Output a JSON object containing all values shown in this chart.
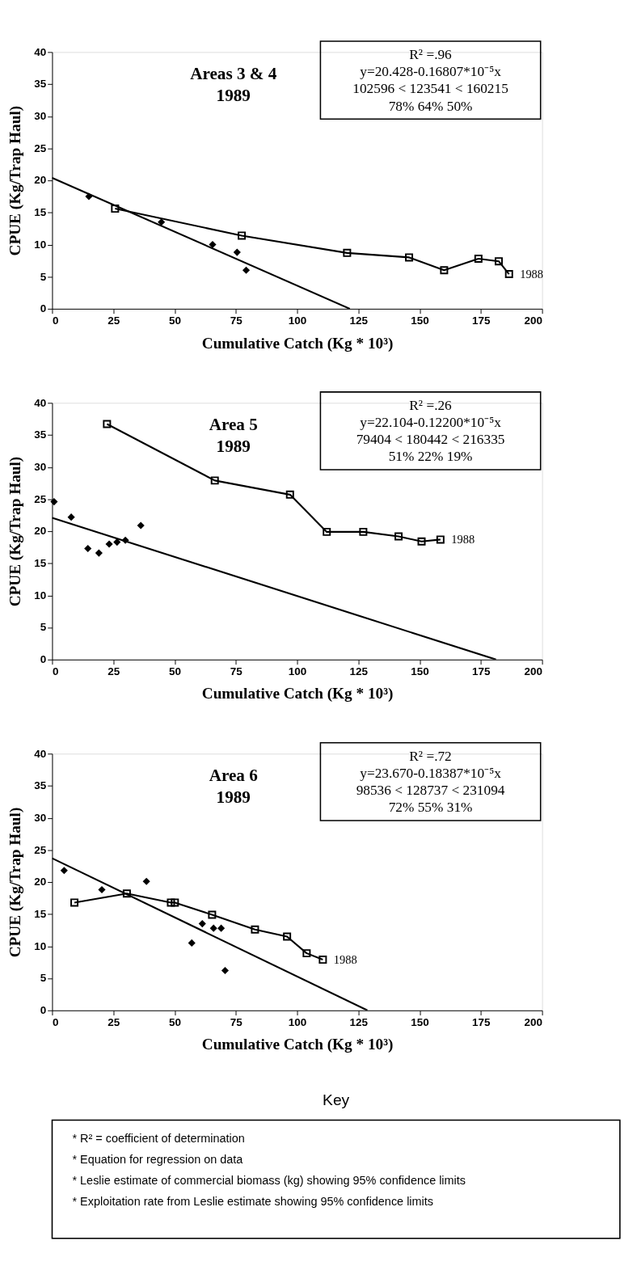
{
  "chart_data": [
    {
      "type": "scatter",
      "title": "Areas 3 & 4",
      "subtitle": "1989",
      "xlabel": "Cumulative Catch  (Kg * 10³)",
      "ylabel": "CPUE (Kg/Trap Haul)",
      "xlim": [
        0,
        200
      ],
      "xticks": [
        0,
        25,
        50,
        75,
        100,
        125,
        150,
        175,
        200
      ],
      "ylim": [
        0,
        40
      ],
      "yticks": [
        0,
        5,
        10,
        15,
        20,
        25,
        30,
        35,
        40
      ],
      "annotations": [
        "R² =.96",
        "y=20.428-0.16807*10⁻⁵x",
        "102596 < 123541 < 160215",
        "78%          64%          50%"
      ],
      "series": [
        {
          "type": "scatter",
          "marker": "diamond",
          "color": "#000000",
          "x": [
            15,
            44.6,
            65.5,
            75.5,
            79.2
          ],
          "values": [
            17.5,
            13.5,
            10,
            8.8,
            6
          ]
        },
        {
          "type": "line",
          "marker": "none",
          "color": "#000000",
          "x": [
            0,
            121.5
          ],
          "values": [
            20.4,
            0
          ]
        },
        {
          "type": "line",
          "marker": "square",
          "name": "1988",
          "color": "#000000",
          "x": [
            25.7,
            77.4,
            120.4,
            145.7,
            160,
            174,
            182.3,
            186.5
          ],
          "values": [
            15.6,
            11.4,
            8.7,
            8.0,
            6.0,
            7.8,
            7.4,
            5.4
          ]
        }
      ]
    },
    {
      "type": "scatter",
      "title": "Area 5",
      "subtitle": "1989",
      "xlabel": "Cumulative Catch  (Kg * 10³)",
      "ylabel": "CPUE (Kg/Trap Haul)",
      "xlim": [
        0,
        200
      ],
      "xticks": [
        0,
        25,
        50,
        75,
        100,
        125,
        150,
        175,
        200
      ],
      "ylim": [
        0,
        40
      ],
      "yticks": [
        0,
        5,
        10,
        15,
        20,
        25,
        30,
        35,
        40
      ],
      "annotations": [
        "R² =.26",
        "y=22.104-0.12200*10⁻⁵x",
        "79404 < 180442 < 216335",
        "51%          22%          19%"
      ],
      "series": [
        {
          "type": "scatter",
          "marker": "diamond",
          "color": "#000000",
          "x": [
            0.8,
            7.8,
            14.6,
            19.1,
            23.3,
            26.5,
            29.9,
            36.2
          ],
          "values": [
            24.6,
            22.2,
            17.3,
            16.6,
            18.0,
            18.3,
            18.6,
            20.9
          ]
        },
        {
          "type": "line",
          "marker": "none",
          "color": "#000000",
          "x": [
            0,
            181.2
          ],
          "values": [
            22.1,
            0
          ]
        },
        {
          "type": "line",
          "marker": "square",
          "name": "1988",
          "color": "#000000",
          "x": [
            22.4,
            66.4,
            97.1,
            112.1,
            127,
            141.4,
            150.8,
            158.5
          ],
          "values": [
            36.7,
            27.9,
            25.7,
            19.9,
            19.9,
            19.2,
            18.4,
            18.7
          ]
        }
      ]
    },
    {
      "type": "scatter",
      "title": "Area 6",
      "subtitle": "1989",
      "xlabel": "Cumulative Catch  (Kg * 10³)",
      "ylabel": "CPUE (Kg/Trap Haul)",
      "xlim": [
        0,
        200
      ],
      "xticks": [
        0,
        25,
        50,
        75,
        100,
        125,
        150,
        175,
        200
      ],
      "ylim": [
        0,
        40
      ],
      "yticks": [
        0,
        5,
        10,
        15,
        20,
        25,
        30,
        35,
        40
      ],
      "annotations": [
        "R² =.72",
        "y=23.670-0.18387*10⁻⁵x",
        "98536 < 128737 < 231094",
        "72%          55%          31%"
      ],
      "series": [
        {
          "type": "scatter",
          "marker": "diamond",
          "color": "#000000",
          "x": [
            4.9,
            20.3,
            38.5,
            57,
            61.3,
            65.9,
            69,
            70.6
          ],
          "values": [
            21.8,
            18.8,
            20.1,
            10.5,
            13.5,
            12.8,
            12.8,
            6.2
          ]
        },
        {
          "type": "line",
          "marker": "none",
          "color": "#000000",
          "x": [
            0,
            128.7
          ],
          "values": [
            23.7,
            0
          ]
        },
        {
          "type": "line",
          "marker": "square",
          "name": "1988",
          "color": "#000000",
          "x": [
            9.1,
            30.5,
            48.5,
            50.1,
            65.3,
            82.8,
            95.9,
            103.9,
            110.5
          ],
          "values": [
            16.8,
            18.2,
            16.8,
            16.8,
            14.9,
            12.6,
            11.5,
            8.9,
            7.9
          ]
        }
      ]
    },
    {
      "type": "other",
      "title": "Key",
      "annotations": [
        "* R² = coefficient of determination",
        "* Equation for regression on data",
        "* Leslie estimate of commercial biomass (kg) showing 95% confidence limits",
        "* Exploitation rate from Leslie estimate showing 95% confidence limits"
      ]
    }
  ]
}
